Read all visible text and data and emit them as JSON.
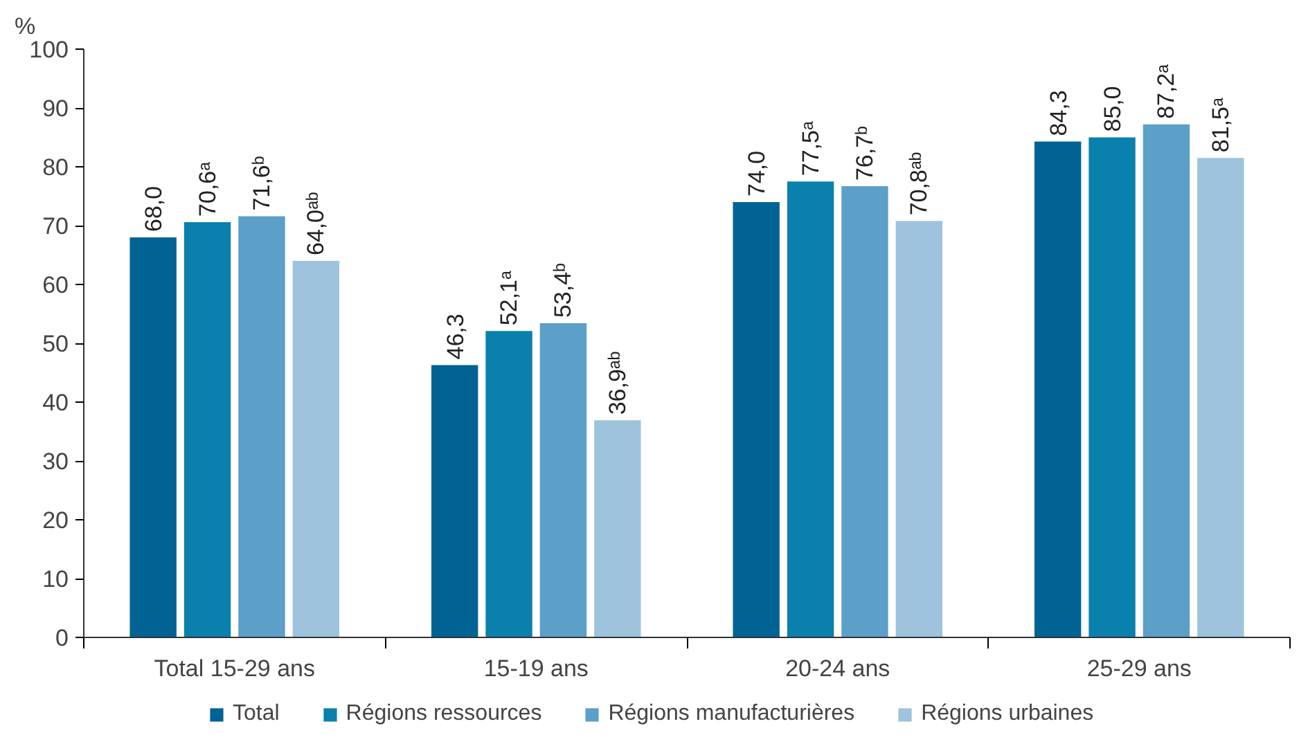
{
  "chart_data": {
    "type": "bar",
    "ylabel": "%",
    "categories": [
      "Total 15-29 ans",
      "15-19 ans",
      "20-24 ans",
      "25-29 ans"
    ],
    "ylim": [
      0,
      100
    ],
    "yticks": [
      0,
      10,
      20,
      30,
      40,
      50,
      60,
      70,
      80,
      90,
      100
    ],
    "grid": false,
    "legend": "bottom",
    "series": [
      {
        "name": "Total",
        "color": "#006394",
        "values": [
          68.0,
          46.3,
          74.0,
          84.3
        ],
        "value_labels": [
          "68,0",
          "46,3",
          "74,0",
          "84,3"
        ]
      },
      {
        "name": "Régions ressources",
        "color": "#0a80ad",
        "values": [
          70.6,
          52.1,
          77.5,
          85.0
        ],
        "value_labels": [
          "70,6ᵃ",
          "52,1ᵃ",
          "77,5ᵃ",
          "85,0"
        ]
      },
      {
        "name": "Régions manufacturières",
        "color": "#5c9fc8",
        "values": [
          71.6,
          53.4,
          76.7,
          87.2
        ],
        "value_labels": [
          "71,6ᵇ",
          "53,4ᵇ",
          "76,7ᵇ",
          "87,2ᵃ"
        ]
      },
      {
        "name": "Régions urbaines",
        "color": "#9dc3dd",
        "values": [
          64.0,
          36.9,
          70.8,
          81.5
        ],
        "value_labels": [
          "64,0ᵃᵇ",
          "36,9ᵃᵇ",
          "70,8ᵃᵇ",
          "81,5ᵃ"
        ]
      }
    ]
  }
}
